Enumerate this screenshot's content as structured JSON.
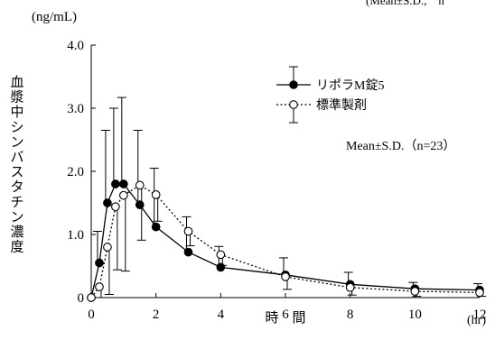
{
  "chart_data": {
    "type": "line",
    "top_note": "(Mean±S.D.,　n",
    "ylabel_unit": "(ng/mL)",
    "ylabel": "血漿中シンバスタチン濃度",
    "xlabel": "時　間",
    "xunit": "(hr)",
    "annotation": "Mean±S.D.（n=23）",
    "xlim": [
      0,
      12
    ],
    "ylim": [
      0,
      4
    ],
    "xticks": [
      "0",
      "2",
      "4",
      "6",
      "8",
      "10",
      "12"
    ],
    "yticks": [
      "0",
      "1.0",
      "2.0",
      "3.0",
      "4.0"
    ],
    "legend_position": "top-right",
    "series": [
      {
        "name": "リポラM錠5",
        "marker": "filled-circle",
        "line": "solid",
        "color": "#000000",
        "points": [
          {
            "x": 0,
            "y": 0,
            "sd": 0
          },
          {
            "x": 0.25,
            "y": 0.55,
            "sd": 0.5
          },
          {
            "x": 0.5,
            "y": 1.5,
            "sd": 1.15
          },
          {
            "x": 0.75,
            "y": 1.8,
            "sd": 1.2
          },
          {
            "x": 1,
            "y": 1.8,
            "sd": 1.37
          },
          {
            "x": 1.5,
            "y": 1.47,
            "sd": 1.18
          },
          {
            "x": 2,
            "y": 1.12,
            "sd": 0.93
          },
          {
            "x": 3,
            "y": 0.72,
            "sd": 0.56
          },
          {
            "x": 4,
            "y": 0.48,
            "sd": 0.33
          },
          {
            "x": 6,
            "y": 0.36,
            "sd": 0.27
          },
          {
            "x": 8,
            "y": 0.21,
            "sd": 0.19
          },
          {
            "x": 10,
            "y": 0.14,
            "sd": 0.1
          },
          {
            "x": 12,
            "y": 0.12,
            "sd": 0.1
          }
        ]
      },
      {
        "name": "標準製剤",
        "marker": "open-circle",
        "line": "dotted",
        "color": "#000000",
        "points": [
          {
            "x": 0,
            "y": 0,
            "sd": 0
          },
          {
            "x": 0.25,
            "y": 0.17,
            "sd": 0.17
          },
          {
            "x": 0.5,
            "y": 0.8,
            "sd": 0.75
          },
          {
            "x": 0.75,
            "y": 1.44,
            "sd": 1.0
          },
          {
            "x": 1,
            "y": 1.62,
            "sd": 1.2
          },
          {
            "x": 1.5,
            "y": 1.78,
            "sd": 0.87
          },
          {
            "x": 2,
            "y": 1.63,
            "sd": 0.42
          },
          {
            "x": 3,
            "y": 1.05,
            "sd": 0.23
          },
          {
            "x": 4,
            "y": 0.68,
            "sd": 0.17
          },
          {
            "x": 6,
            "y": 0.33,
            "sd": 0.2
          },
          {
            "x": 8,
            "y": 0.16,
            "sd": 0.12
          },
          {
            "x": 10,
            "y": 0.1,
            "sd": 0.08
          },
          {
            "x": 12,
            "y": 0.08,
            "sd": 0.06
          }
        ]
      }
    ]
  }
}
